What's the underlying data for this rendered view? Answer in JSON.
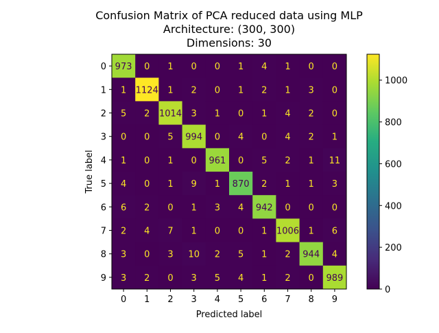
{
  "chart_data": {
    "type": "heatmap",
    "title_lines": [
      "Confusion Matrix of PCA reduced data using MLP",
      "Architecture: (300, 300)",
      "Dimensions: 30"
    ],
    "xlabel": "Predicted label",
    "ylabel": "True label",
    "x_categories": [
      "0",
      "1",
      "2",
      "3",
      "4",
      "5",
      "6",
      "7",
      "8",
      "9"
    ],
    "y_categories": [
      "0",
      "1",
      "2",
      "3",
      "4",
      "5",
      "6",
      "7",
      "8",
      "9"
    ],
    "matrix": [
      [
        973,
        0,
        1,
        0,
        0,
        1,
        4,
        1,
        0,
        0
      ],
      [
        1,
        1124,
        1,
        2,
        0,
        1,
        2,
        1,
        3,
        0
      ],
      [
        5,
        2,
        1014,
        3,
        1,
        0,
        1,
        4,
        2,
        0
      ],
      [
        0,
        0,
        5,
        994,
        0,
        4,
        0,
        4,
        2,
        1
      ],
      [
        1,
        0,
        1,
        0,
        961,
        0,
        5,
        2,
        1,
        11
      ],
      [
        4,
        0,
        1,
        9,
        1,
        870,
        2,
        1,
        1,
        3
      ],
      [
        6,
        2,
        0,
        1,
        3,
        4,
        942,
        0,
        0,
        0
      ],
      [
        2,
        4,
        7,
        1,
        0,
        0,
        1,
        1006,
        1,
        6
      ],
      [
        3,
        0,
        3,
        10,
        2,
        5,
        1,
        2,
        944,
        4
      ],
      [
        3,
        2,
        0,
        3,
        5,
        4,
        1,
        2,
        0,
        989
      ]
    ],
    "colormap": "viridis",
    "colorbar": {
      "range": [
        0,
        1124
      ],
      "ticks": [
        0,
        200,
        400,
        600,
        800,
        1000
      ]
    },
    "colors": {
      "low_text": "#fde725",
      "high_text": "#440154"
    }
  }
}
